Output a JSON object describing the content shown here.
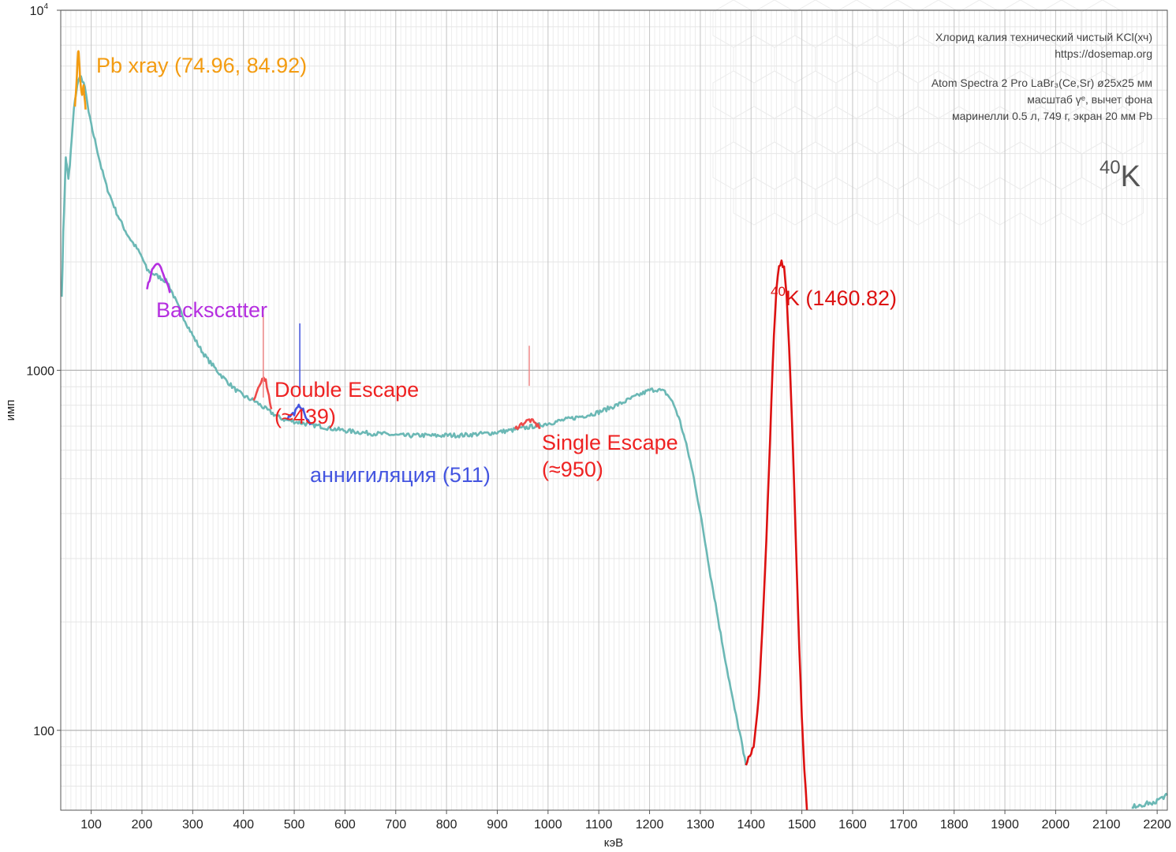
{
  "chart_data": {
    "type": "line",
    "xlabel": "кэВ",
    "ylabel": "имп",
    "xlim": [
      40,
      2220
    ],
    "ylim": [
      60,
      10000
    ],
    "y_scale": "log",
    "grid": true,
    "x_ticks": [
      100,
      200,
      300,
      400,
      500,
      600,
      700,
      800,
      900,
      1000,
      1100,
      1200,
      1300,
      1400,
      1500,
      1600,
      1700,
      1800,
      1900,
      2000,
      2100,
      2200
    ],
    "y_ticks": [
      {
        "value": 100,
        "base": "100",
        "exp": ""
      },
      {
        "value": 1000,
        "base": "1000",
        "exp": ""
      },
      {
        "value": 10000,
        "base": "10",
        "exp": "4"
      }
    ],
    "info_lines": [
      "Хлорид калия технический чистый KCl(хч)",
      "https://dosemap.org",
      "",
      "Atom Spectra 2 Pro LaBr₃(Ce,Sr) ø25x25 мм",
      "масштаб γᵉ, вычет фона",
      "маринелли 0.5 л, 749 г, экран 20 мм Pb"
    ],
    "nuclide": {
      "sup": "40",
      "symbol": "K"
    },
    "series": [
      {
        "color": "#6bb8b5",
        "points": [
          [
            42,
            1600
          ],
          [
            45,
            2400
          ],
          [
            48,
            3200
          ],
          [
            50,
            3900
          ],
          [
            52,
            3700
          ],
          [
            55,
            3400
          ],
          [
            58,
            3700
          ],
          [
            62,
            4500
          ],
          [
            66,
            5300
          ],
          [
            70,
            5900
          ],
          [
            75,
            6400
          ],
          [
            80,
            6500
          ],
          [
            85,
            6300
          ],
          [
            90,
            5800
          ],
          [
            95,
            5200
          ],
          [
            100,
            4800
          ],
          [
            110,
            4200
          ],
          [
            120,
            3650
          ],
          [
            130,
            3250
          ],
          [
            140,
            2980
          ],
          [
            150,
            2740
          ],
          [
            160,
            2560
          ],
          [
            170,
            2400
          ],
          [
            180,
            2280
          ],
          [
            190,
            2180
          ],
          [
            200,
            2060
          ],
          [
            210,
            1900
          ],
          [
            250,
            1760
          ],
          [
            260,
            1640
          ],
          [
            270,
            1520
          ],
          [
            280,
            1420
          ],
          [
            290,
            1330
          ],
          [
            300,
            1250
          ],
          [
            310,
            1180
          ],
          [
            320,
            1120
          ],
          [
            330,
            1070
          ],
          [
            340,
            1030
          ],
          [
            350,
            990
          ],
          [
            360,
            955
          ],
          [
            370,
            925
          ],
          [
            380,
            895
          ],
          [
            390,
            870
          ],
          [
            400,
            850
          ],
          [
            410,
            835
          ],
          [
            420,
            825
          ],
          [
            450,
            770
          ],
          [
            460,
            755
          ],
          [
            470,
            740
          ],
          [
            480,
            730
          ],
          [
            535,
            705
          ],
          [
            550,
            700
          ],
          [
            570,
            690
          ],
          [
            600,
            680
          ],
          [
            620,
            675
          ],
          [
            650,
            668
          ],
          [
            680,
            665
          ],
          [
            700,
            660
          ],
          [
            720,
            658
          ],
          [
            750,
            660
          ],
          [
            780,
            658
          ],
          [
            800,
            660
          ],
          [
            830,
            660
          ],
          [
            860,
            665
          ],
          [
            890,
            670
          ],
          [
            910,
            676
          ],
          [
            930,
            682
          ],
          [
            985,
            705
          ],
          [
            1000,
            712
          ],
          [
            1020,
            722
          ],
          [
            1040,
            732
          ],
          [
            1060,
            742
          ],
          [
            1080,
            752
          ],
          [
            1100,
            765
          ],
          [
            1120,
            785
          ],
          [
            1140,
            805
          ],
          [
            1160,
            830
          ],
          [
            1180,
            855
          ],
          [
            1200,
            880
          ],
          [
            1215,
            885
          ],
          [
            1230,
            870
          ],
          [
            1240,
            840
          ],
          [
            1250,
            790
          ],
          [
            1260,
            720
          ],
          [
            1270,
            640
          ],
          [
            1280,
            560
          ],
          [
            1290,
            480
          ],
          [
            1300,
            400
          ],
          [
            1310,
            330
          ],
          [
            1320,
            270
          ],
          [
            1330,
            225
          ],
          [
            1340,
            185
          ],
          [
            1350,
            155
          ],
          [
            1360,
            130
          ],
          [
            1370,
            110
          ],
          [
            1380,
            95
          ],
          [
            1385,
            86
          ],
          [
            1390,
            80
          ]
        ]
      },
      {
        "color": "#6bb8b5",
        "points": [
          [
            2150,
            61
          ],
          [
            2160,
            62
          ],
          [
            2170,
            61
          ],
          [
            2180,
            63
          ],
          [
            2190,
            62
          ],
          [
            2200,
            64
          ],
          [
            2210,
            65
          ],
          [
            2220,
            66
          ]
        ]
      },
      {
        "color": "#f39c12",
        "points": [
          [
            68,
            5400
          ],
          [
            70,
            5900
          ],
          [
            72,
            6700
          ],
          [
            74,
            7600
          ],
          [
            75,
            7800
          ],
          [
            76,
            7300
          ],
          [
            78,
            6500
          ],
          [
            80,
            6000
          ],
          [
            82,
            5800
          ],
          [
            84,
            6100
          ],
          [
            85,
            6200
          ],
          [
            87,
            5700
          ],
          [
            89,
            5300
          ]
        ]
      },
      {
        "color": "#b52fe0",
        "points": [
          [
            210,
            1680
          ],
          [
            215,
            1790
          ],
          [
            220,
            1900
          ],
          [
            225,
            1960
          ],
          [
            230,
            2000
          ],
          [
            235,
            1960
          ],
          [
            240,
            1880
          ],
          [
            245,
            1800
          ],
          [
            250,
            1720
          ],
          [
            255,
            1640
          ]
        ]
      },
      {
        "color": "#ee4a4a",
        "points": [
          [
            420,
            825
          ],
          [
            426,
            860
          ],
          [
            432,
            905
          ],
          [
            437,
            945
          ],
          [
            440,
            960
          ],
          [
            444,
            935
          ],
          [
            448,
            880
          ],
          [
            452,
            820
          ],
          [
            455,
            780
          ]
        ]
      },
      {
        "color": "#4455e0",
        "points": [
          [
            485,
            735
          ],
          [
            492,
            748
          ],
          [
            500,
            760
          ],
          [
            507,
            785
          ],
          [
            511,
            800
          ],
          [
            515,
            785
          ],
          [
            520,
            760
          ],
          [
            525,
            730
          ],
          [
            532,
            705
          ]
        ]
      },
      {
        "color": "#ee4a4a",
        "points": [
          [
            935,
            688
          ],
          [
            945,
            705
          ],
          [
            955,
            718
          ],
          [
            963,
            728
          ],
          [
            970,
            720
          ],
          [
            978,
            705
          ],
          [
            985,
            694
          ]
        ]
      },
      {
        "color": "#dd1111",
        "points": [
          [
            1390,
            80
          ],
          [
            1395,
            84
          ],
          [
            1400,
            86
          ],
          [
            1405,
            90
          ],
          [
            1410,
            104
          ],
          [
            1415,
            125
          ],
          [
            1420,
            165
          ],
          [
            1425,
            230
          ],
          [
            1430,
            340
          ],
          [
            1435,
            520
          ],
          [
            1440,
            820
          ],
          [
            1445,
            1250
          ],
          [
            1450,
            1700
          ],
          [
            1455,
            1950
          ],
          [
            1460,
            2000
          ],
          [
            1465,
            1920
          ],
          [
            1470,
            1600
          ],
          [
            1475,
            1150
          ],
          [
            1480,
            760
          ],
          [
            1485,
            470
          ],
          [
            1490,
            280
          ],
          [
            1495,
            170
          ],
          [
            1500,
            110
          ],
          [
            1505,
            78
          ],
          [
            1510,
            60
          ]
        ]
      }
    ],
    "annotations": [
      {
        "text": "Pb xray (74.96, 84.92)",
        "color": "#f39c12"
      },
      {
        "text": "Backscatter",
        "color": "#b52fe0"
      },
      {
        "text": "Double Escape",
        "color": "#ee2222"
      },
      {
        "text": "(≈439)",
        "color": "#ee2222"
      },
      {
        "text": "аннигиляция (511)",
        "color": "#4455e0"
      },
      {
        "text": "Single Escape",
        "color": "#ee2222"
      },
      {
        "text": "(≈950)",
        "color": "#ee2222"
      },
      {
        "sup": "40",
        "text": "K (1460.82)",
        "color": "#dd1111"
      }
    ]
  }
}
